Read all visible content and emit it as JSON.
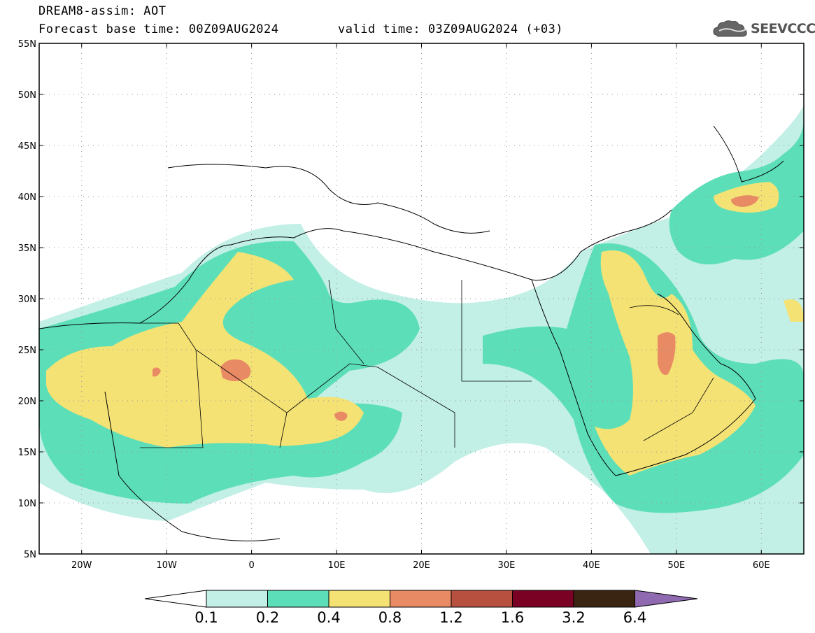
{
  "header": {
    "title": "DREAM8-assim: AOT",
    "base_time": "Forecast base time: 00Z09AUG2024",
    "valid_time": "valid time: 03Z09AUG2024 (+03)",
    "logo_text": "SEEVCCC"
  },
  "map": {
    "lat_labels": [
      "55N",
      "50N",
      "45N",
      "40N",
      "35N",
      "30N",
      "25N",
      "20N",
      "15N",
      "10N",
      "5N"
    ],
    "lon_labels": [
      "20W",
      "10W",
      "0",
      "10E",
      "20E",
      "30E",
      "40E",
      "50E",
      "60E"
    ],
    "lon_range": [
      -25,
      65
    ],
    "lat_range": [
      5,
      55
    ],
    "field": "AOT"
  },
  "colorbar": {
    "labels": [
      "0.1",
      "0.2",
      "0.4",
      "0.8",
      "1.2",
      "1.6",
      "3.2",
      "6.4"
    ],
    "colors": [
      "#ffffff",
      "#c2efe6",
      "#5cdfb8",
      "#f4e275",
      "#e88a64",
      "#b85040",
      "#7a0024",
      "#3a2412",
      "#8f6ab0"
    ]
  }
}
